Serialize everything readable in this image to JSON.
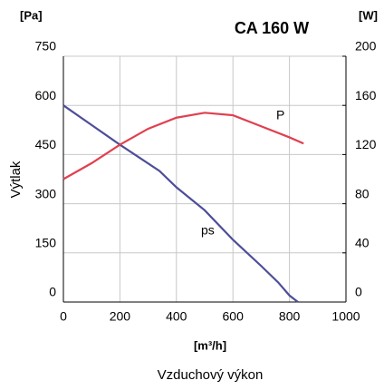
{
  "chart_data": {
    "type": "line",
    "title": "CA 160 W",
    "y_unit": "[Pa]",
    "y2_unit": "[W]",
    "ylabel": "Výtlak",
    "x_unit": "[m³/h]",
    "xlabel": "Vzduchový výkon",
    "xlim": [
      0,
      1000
    ],
    "xticks": [
      0,
      200,
      400,
      600,
      800,
      1000
    ],
    "ylim": [
      0,
      750
    ],
    "yticks": [
      0,
      150,
      300,
      450,
      600,
      750
    ],
    "y2lim": [
      0,
      200
    ],
    "y2ticks": [
      0,
      40,
      80,
      120,
      160,
      200
    ],
    "grid": true,
    "series": [
      {
        "name": "ps",
        "color": "#4d4d99",
        "x": [
          0,
          100,
          200,
          340,
          400,
          500,
          600,
          700,
          760,
          800,
          830
        ],
        "values": [
          600,
          540,
          480,
          400,
          350,
          280,
          190,
          110,
          60,
          20,
          0
        ]
      },
      {
        "name": "P",
        "color": "#e04050",
        "axis": "y2",
        "x": [
          0,
          100,
          200,
          300,
          400,
          500,
          600,
          700,
          800,
          850
        ],
        "values": [
          100,
          113,
          128,
          141,
          150,
          154,
          152,
          143,
          134,
          129
        ]
      }
    ]
  }
}
